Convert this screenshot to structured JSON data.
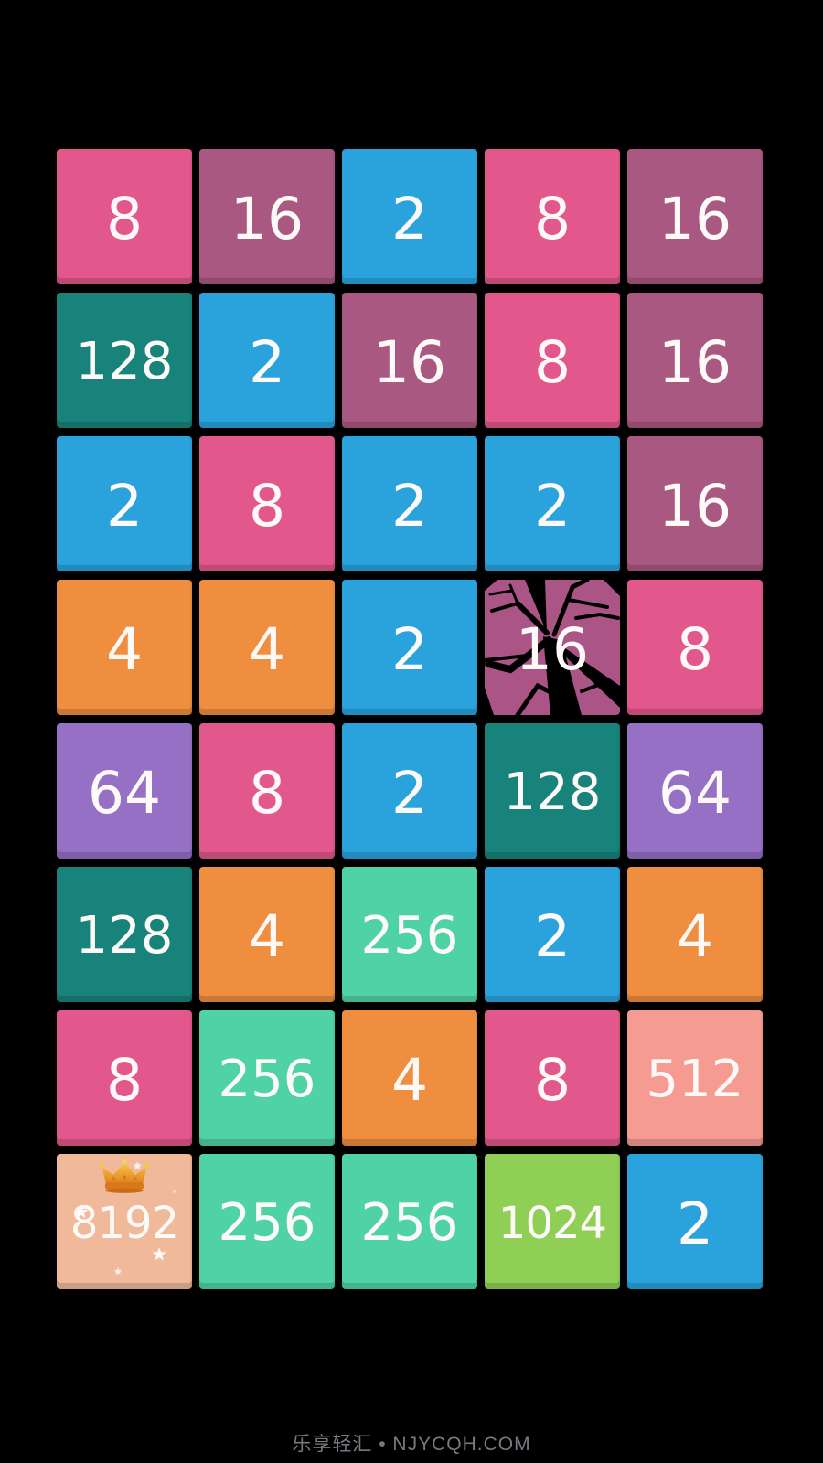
{
  "app": {
    "background_color": "#000000",
    "number_text_color": "#fdf9f6"
  },
  "board": {
    "rows": 8,
    "cols": 5,
    "tiles": [
      {
        "value": 8
      },
      {
        "value": 16
      },
      {
        "value": 2
      },
      {
        "value": 8
      },
      {
        "value": 16
      },
      {
        "value": 128
      },
      {
        "value": 2
      },
      {
        "value": 16
      },
      {
        "value": 8
      },
      {
        "value": 16
      },
      {
        "value": 2
      },
      {
        "value": 8
      },
      {
        "value": 2
      },
      {
        "value": 2
      },
      {
        "value": 16
      },
      {
        "value": 4
      },
      {
        "value": 4
      },
      {
        "value": 2
      },
      {
        "value": 16,
        "state": "cracked"
      },
      {
        "value": 8
      },
      {
        "value": 64
      },
      {
        "value": 8
      },
      {
        "value": 2
      },
      {
        "value": 128
      },
      {
        "value": 64
      },
      {
        "value": 128
      },
      {
        "value": 4
      },
      {
        "value": 256
      },
      {
        "value": 2
      },
      {
        "value": 4
      },
      {
        "value": 8
      },
      {
        "value": 256
      },
      {
        "value": 4
      },
      {
        "value": 8
      },
      {
        "value": 512
      },
      {
        "value": 8192,
        "state": "crowned"
      },
      {
        "value": 256
      },
      {
        "value": 256
      },
      {
        "value": 1024
      },
      {
        "value": 2
      }
    ]
  },
  "tile_colors": {
    "2": "#2aa3dd",
    "4": "#f08e3f",
    "8": "#e2588c",
    "16": "#a85881",
    "64": "#9570c5",
    "128": "#17837a",
    "256": "#4fd3a6",
    "512": "#f69b92",
    "1024": "#90cf56",
    "8192": "#efb99a"
  },
  "special": {
    "cracked_tile_color": "#aa5585",
    "crack_color": "#000000",
    "crown_gold_light": "#f8c64c",
    "crown_gold_dark": "#e0821c",
    "crown_band_color": "#d9771b",
    "sparkle_glyph": "★",
    "sparkle_color": "#ffffff"
  },
  "icons": {
    "crown": "crown-icon",
    "sparkles": "star-sparkle-icon",
    "cracks": "cracked-glass-overlay"
  },
  "footer": {
    "watermark": "乐享轻汇 • NJYCQH.COM",
    "color": "#7e7680"
  }
}
